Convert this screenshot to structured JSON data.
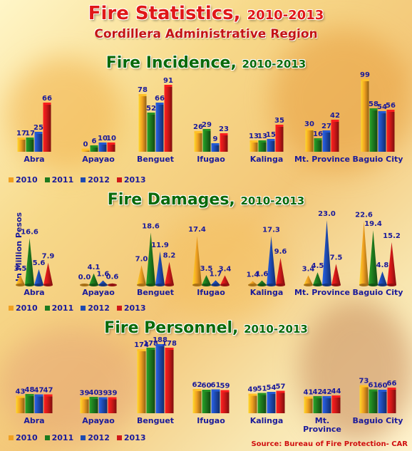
{
  "title": "Fire Statistics,",
  "title_years": "2010-2013",
  "subtitle": "Cordillera Administrative Region",
  "source": "Source: Bureau of Fire Protection- CAR",
  "colors": {
    "2010": "#f0a020",
    "2011": "#1e7a1e",
    "2012": "#1e4ab0",
    "2013": "#d01818"
  },
  "chart_data": [
    {
      "type": "bar",
      "title": "Fire Incidence,",
      "title_years": "2010-2013",
      "categories": [
        "Abra",
        "Apayao",
        "Benguet",
        "Ifugao",
        "Kalinga",
        "Mt. Province",
        "Baguio City"
      ],
      "series": [
        {
          "name": "2010",
          "values": [
            17,
            0,
            78,
            26,
            13,
            30,
            99
          ]
        },
        {
          "name": "2011",
          "values": [
            17,
            6,
            52,
            29,
            13,
            16,
            58
          ]
        },
        {
          "name": "2012",
          "values": [
            25,
            10,
            66,
            9,
            15,
            27,
            54
          ]
        },
        {
          "name": "2013",
          "values": [
            66,
            10,
            91,
            23,
            35,
            42,
            56
          ]
        }
      ],
      "ylim": [
        0,
        100
      ],
      "legend": "bottom-left"
    },
    {
      "type": "bar",
      "title": "Fire Damages,",
      "title_years": "2010-2013",
      "ylabel": "In Million Pesos",
      "categories": [
        "Abra",
        "Apayao",
        "Benguet",
        "Ifugao",
        "Kalinga",
        "Mt. Province",
        "Baguio City"
      ],
      "series": [
        {
          "name": "2010",
          "values": [
            "3.5",
            "0.0",
            "7.0",
            "17.4",
            "1.4",
            "3.4",
            "22.6"
          ]
        },
        {
          "name": "2011",
          "values": [
            "16.6",
            "4.1",
            "18.6",
            "3.5",
            "1.6",
            "4.5",
            "19.4"
          ]
        },
        {
          "name": "2012",
          "values": [
            "5.6",
            "1.6",
            "11.9",
            "1.7",
            "17.3",
            "23.0",
            "4.8"
          ]
        },
        {
          "name": "2013",
          "values": [
            "7.9",
            "0.6",
            "8.2",
            "3.4",
            "9.6",
            "7.5",
            "15.2"
          ]
        }
      ],
      "ylim": [
        0,
        24
      ],
      "legend": "bottom-left"
    },
    {
      "type": "bar",
      "title": "Fire Personnel,",
      "title_years": "2010-2013",
      "categories": [
        "Abra",
        "Apayao",
        "Benguet",
        "Ifugao",
        "Kalinga",
        "Mt. Province",
        "Baguio City"
      ],
      "series": [
        {
          "name": "2010",
          "values": [
            43,
            39,
            174,
            62,
            49,
            41,
            73
          ]
        },
        {
          "name": "2011",
          "values": [
            48,
            40,
            178,
            60,
            51,
            42,
            61
          ]
        },
        {
          "name": "2012",
          "values": [
            47,
            39,
            188,
            61,
            54,
            42,
            60
          ]
        },
        {
          "name": "2013",
          "values": [
            47,
            39,
            178,
            59,
            57,
            44,
            66
          ]
        }
      ],
      "ylim": [
        0,
        190
      ],
      "legend": "bottom-left"
    }
  ]
}
